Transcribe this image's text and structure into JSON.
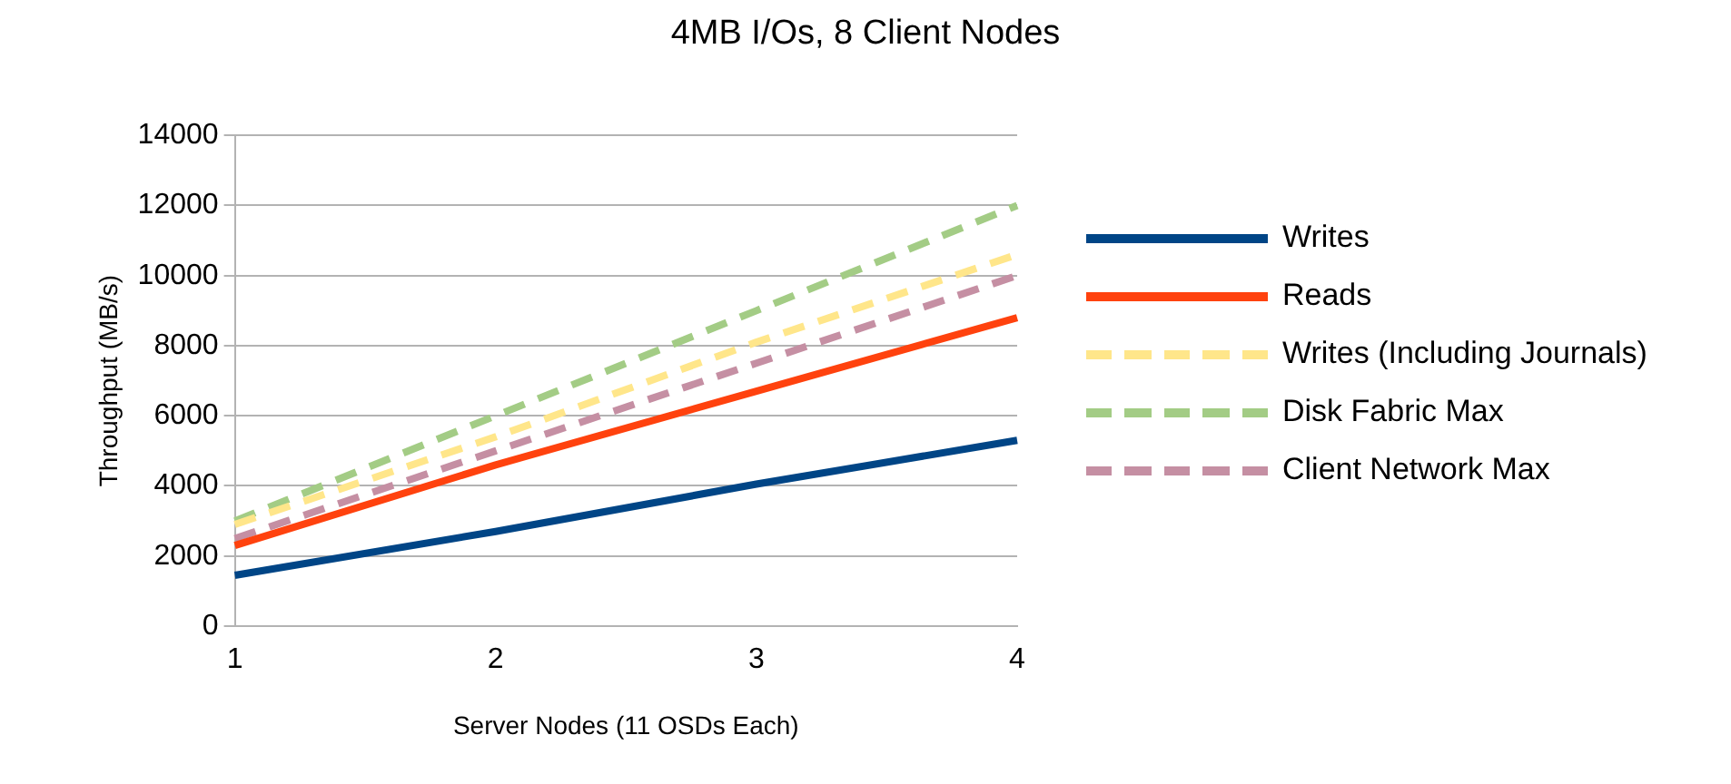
{
  "chart_data": {
    "type": "line",
    "title": "4MB I/Os, 8 Client Nodes",
    "xlabel": "Server Nodes (11 OSDs Each)",
    "ylabel": "Throughput (MB/s)",
    "x": [
      1,
      2,
      3,
      4
    ],
    "xlim": [
      1,
      4
    ],
    "xticks": [
      1,
      2,
      3,
      4
    ],
    "ylim": [
      0,
      14000
    ],
    "yticks": [
      0,
      2000,
      4000,
      6000,
      8000,
      10000,
      12000,
      14000
    ],
    "grid": "y",
    "legend": "right",
    "marker": "none",
    "series": [
      {
        "name": "Writes",
        "color": "#004586",
        "values": [
          1450,
          2700,
          4050,
          5300
        ],
        "line_style": "solid"
      },
      {
        "name": "Reads",
        "color": "#ff420e",
        "values": [
          2300,
          4600,
          6700,
          8800
        ],
        "line_style": "solid"
      },
      {
        "name": "Writes (Including Journals)",
        "color": "#ffe68a",
        "values": [
          2900,
          5400,
          8100,
          10600
        ],
        "line_style": "dashed"
      },
      {
        "name": "Disk Fabric Max",
        "color": "#a3cc85",
        "values": [
          3000,
          6000,
          9000,
          12000
        ],
        "line_style": "dashed"
      },
      {
        "name": "Client Network Max",
        "color": "#c58fa3",
        "values": [
          2500,
          5000,
          7500,
          10000
        ],
        "line_style": "dashed"
      }
    ]
  }
}
